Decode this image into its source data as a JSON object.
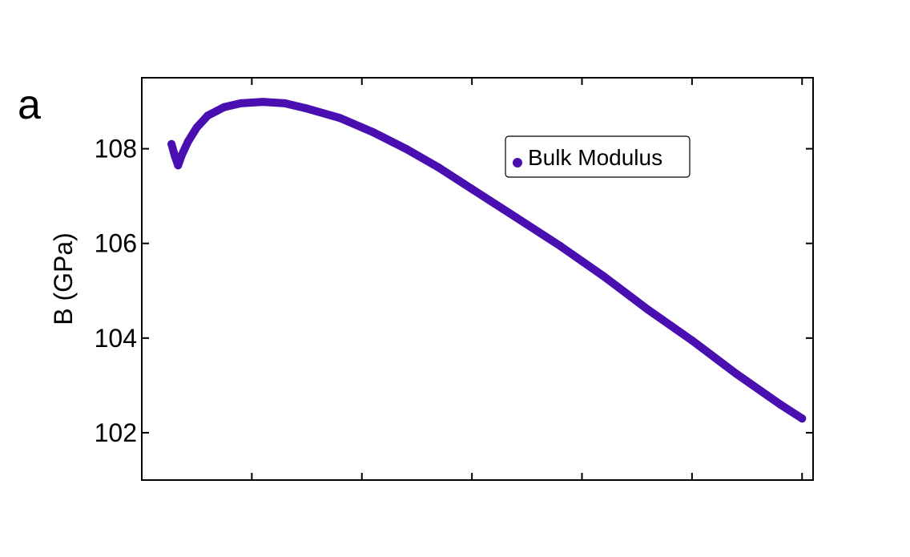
{
  "panel_label": "a",
  "chart_data": {
    "type": "scatter",
    "ylabel": "B (GPa)",
    "xlabel": "",
    "ylim": [
      101,
      109.5
    ],
    "yticks": [
      102,
      104,
      106,
      108
    ],
    "ytick_labels": [
      "102",
      "104",
      "106",
      "108"
    ],
    "xlim": [
      0,
      6.1
    ],
    "xticks": [
      0,
      1,
      2,
      3,
      4,
      5,
      6
    ],
    "x_tick_labels_shown": false,
    "legend": {
      "position": "top-right",
      "entries": [
        "Bulk Modulus"
      ]
    },
    "grid": false,
    "series": [
      {
        "name": "Bulk Modulus",
        "color": "#4a0fb0",
        "marker": "dot",
        "points": [
          [
            0.27,
            108.1
          ],
          [
            0.3,
            107.85
          ],
          [
            0.33,
            107.65
          ],
          [
            0.36,
            107.85
          ],
          [
            0.42,
            108.15
          ],
          [
            0.5,
            108.45
          ],
          [
            0.6,
            108.7
          ],
          [
            0.75,
            108.88
          ],
          [
            0.9,
            108.96
          ],
          [
            1.1,
            108.99
          ],
          [
            1.3,
            108.96
          ],
          [
            1.5,
            108.85
          ],
          [
            1.8,
            108.65
          ],
          [
            2.1,
            108.35
          ],
          [
            2.4,
            108.0
          ],
          [
            2.7,
            107.6
          ],
          [
            3.0,
            107.15
          ],
          [
            3.4,
            106.55
          ],
          [
            3.8,
            105.95
          ],
          [
            4.2,
            105.3
          ],
          [
            4.6,
            104.6
          ],
          [
            5.0,
            103.95
          ],
          [
            5.4,
            103.25
          ],
          [
            5.8,
            102.6
          ],
          [
            6.0,
            102.3
          ]
        ]
      }
    ]
  }
}
